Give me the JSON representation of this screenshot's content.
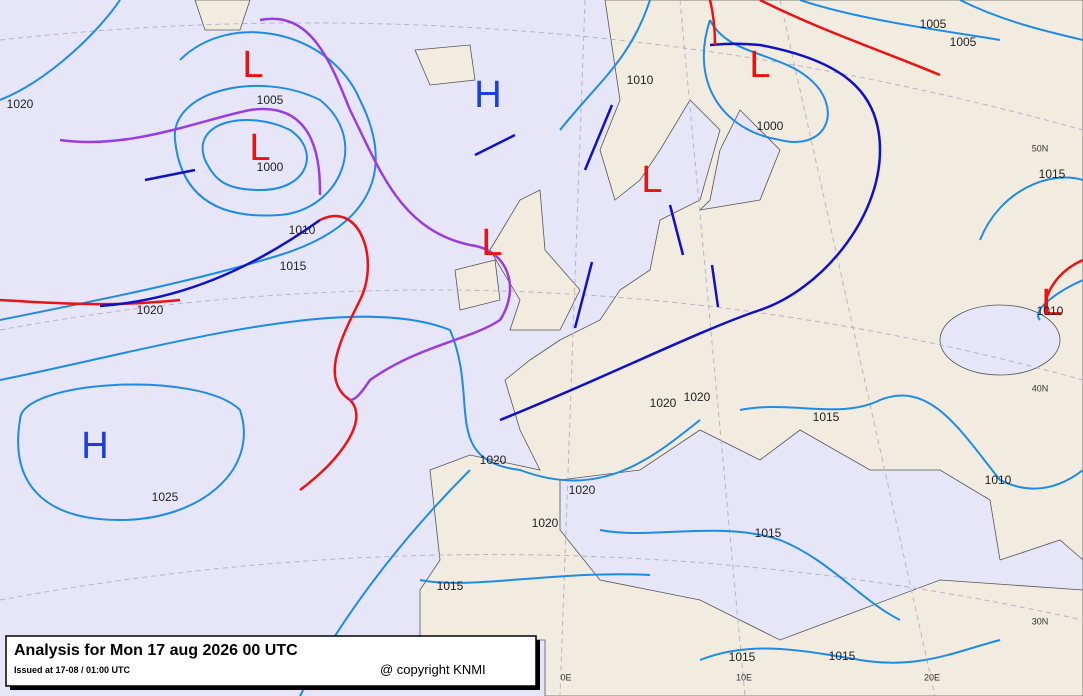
{
  "map": {
    "pressure_centers": [
      "L",
      "L",
      "H",
      "L",
      "L",
      "L",
      "L",
      "H"
    ],
    "isobar_labels": [
      1005,
      1000,
      1010,
      1015,
      1020,
      1025,
      1010,
      1000,
      1005,
      1005,
      1015,
      1020,
      1020,
      1015,
      1010,
      1020,
      1020,
      1020,
      1015,
      1015,
      1015,
      1015,
      1010,
      1020
    ],
    "grid_labels": [
      "50N",
      "40N",
      "30N",
      "0E",
      "10E",
      "20E"
    ]
  },
  "footer": {
    "title": "Analysis for Mon 17 aug 2026 00 UTC",
    "issued": "Issued at 17-08 / 01:00 UTC",
    "copyright": "@ copyright KNMI"
  }
}
